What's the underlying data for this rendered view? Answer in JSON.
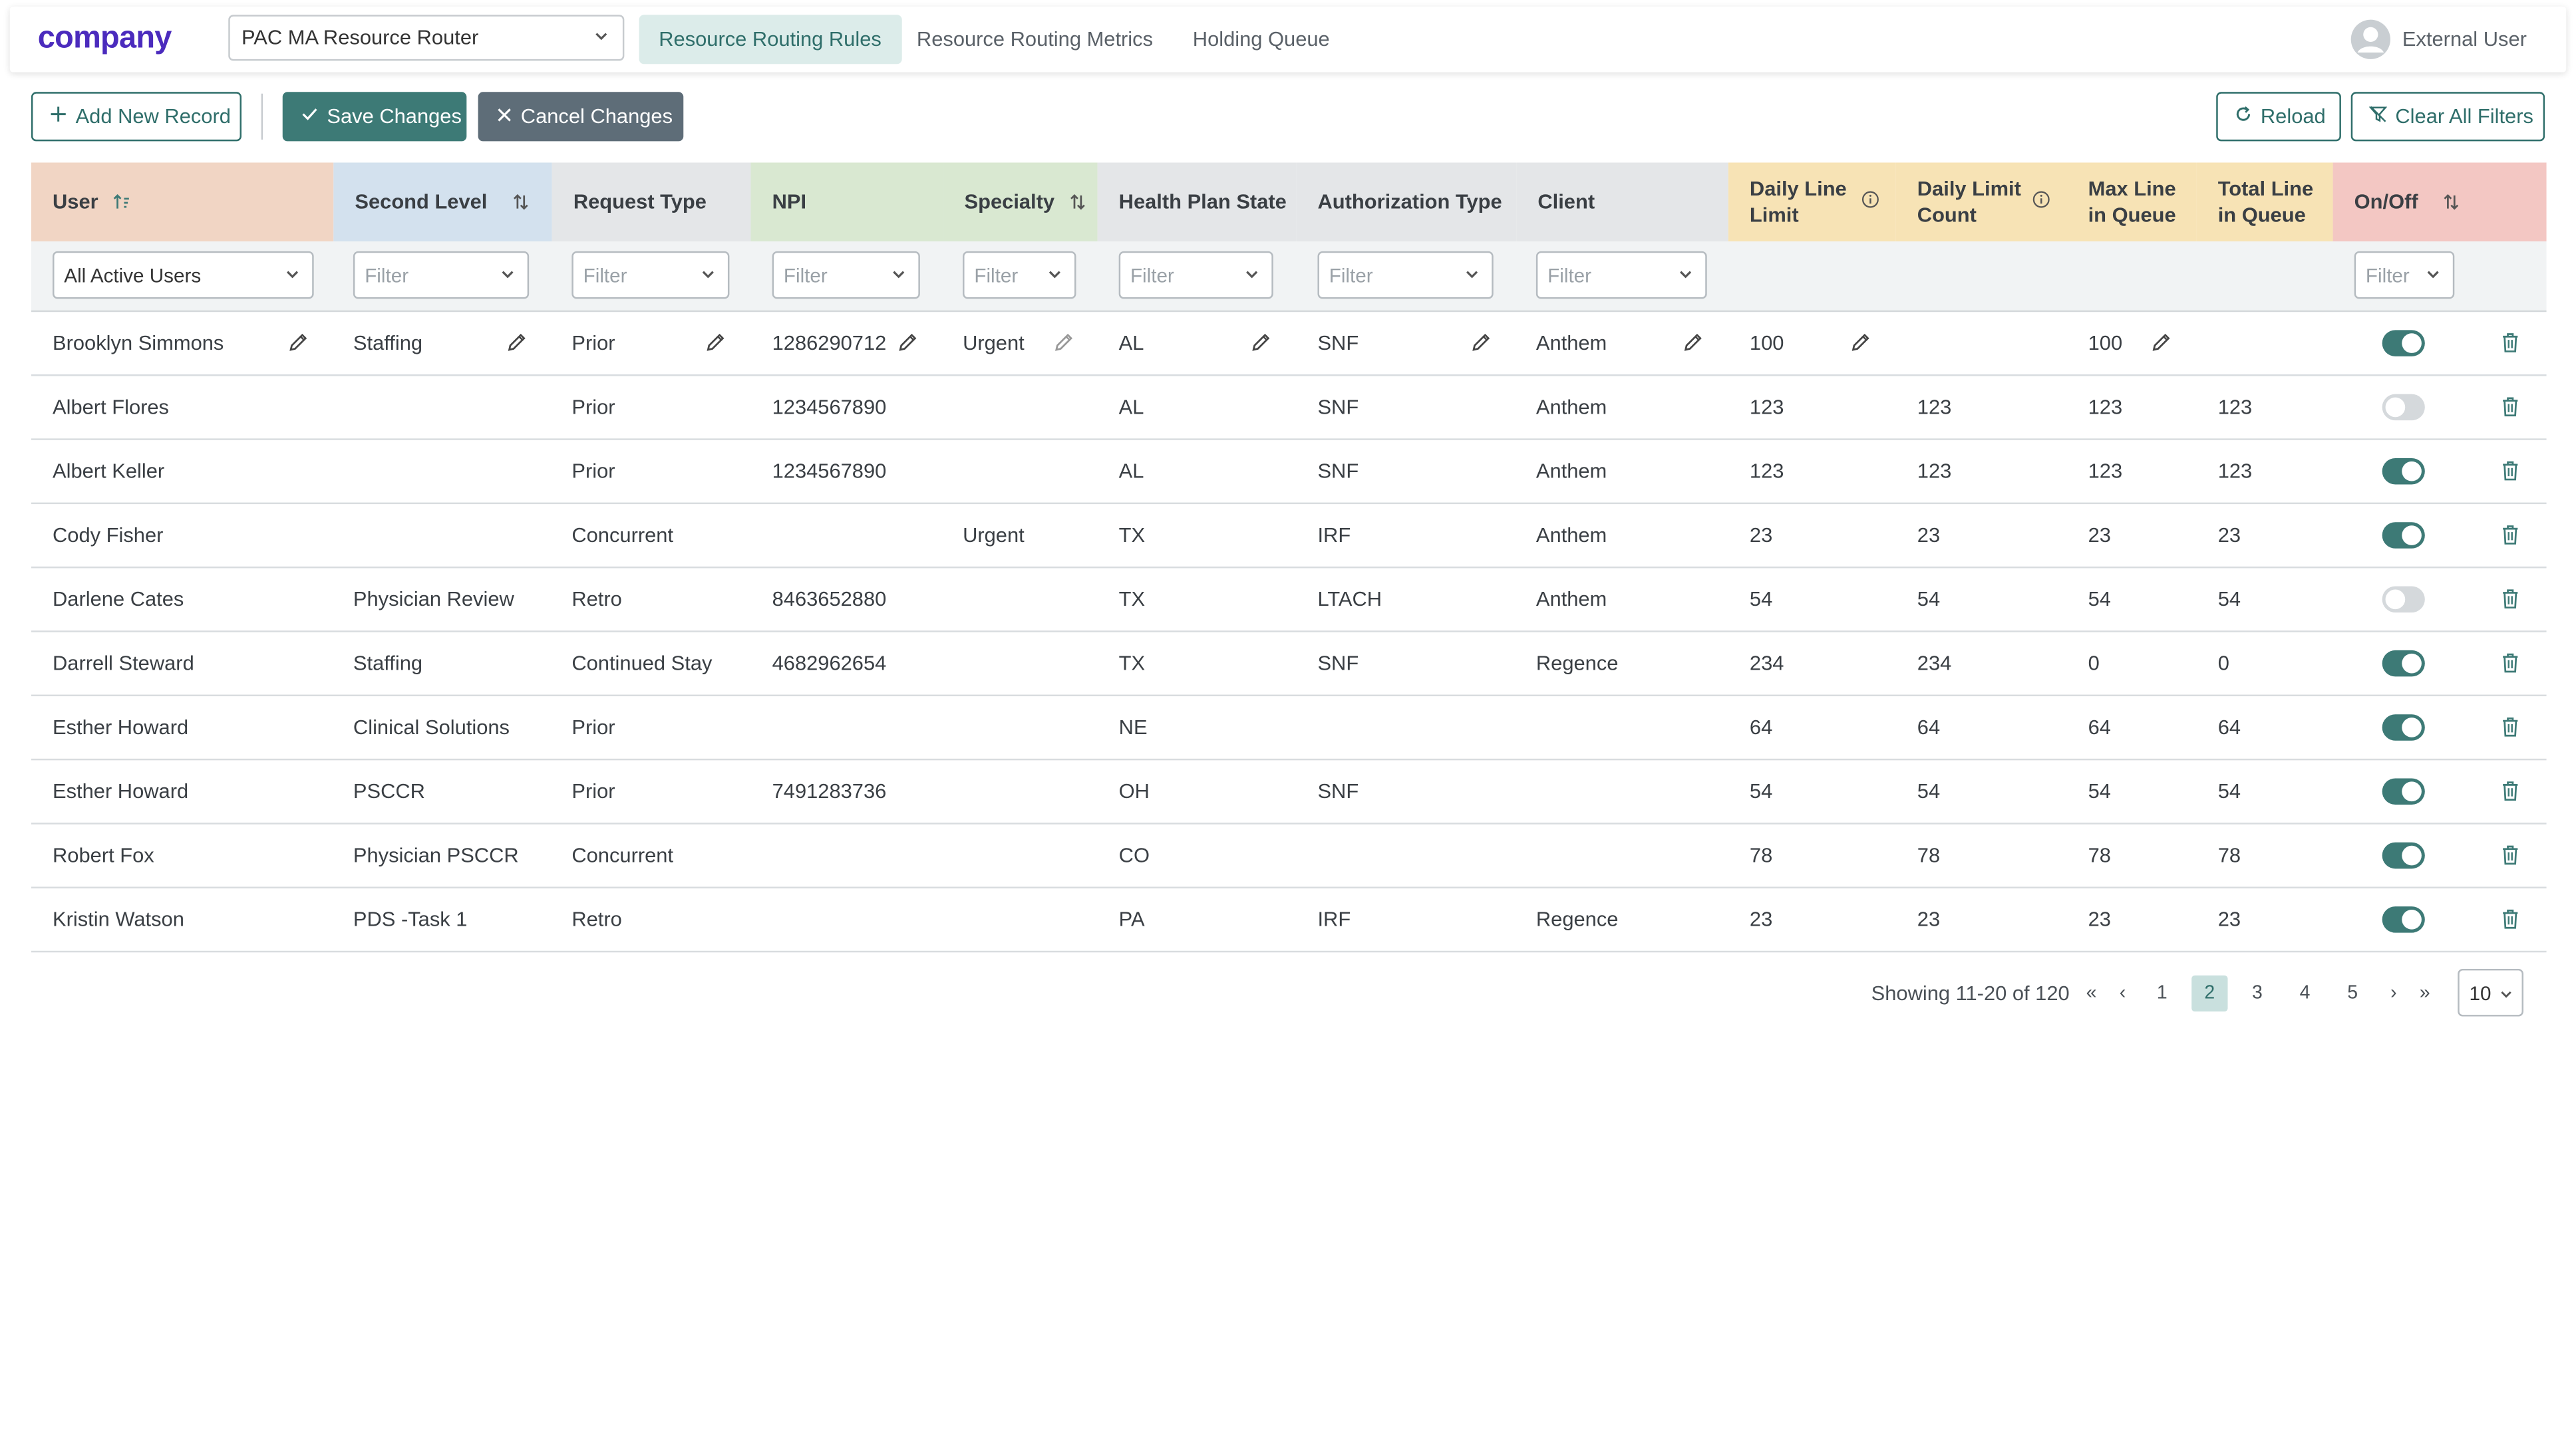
{
  "app": {
    "logo": "company",
    "router_select": "PAC MA Resource Router",
    "tabs": [
      {
        "label": "Resource Routing Rules",
        "active": true
      },
      {
        "label": "Resource Routing Metrics",
        "active": false
      },
      {
        "label": "Holding Queue",
        "active": false
      }
    ],
    "user": "External User"
  },
  "toolbar": {
    "add_new": "Add New Record",
    "save": "Save Changes",
    "cancel": "Cancel Changes",
    "reload": "Reload",
    "clear_filters": "Clear All Filters"
  },
  "colors": {
    "accent": "#3d7a76",
    "header_user": "#f1d5c4",
    "header_second_level": "#d3e1ee",
    "header_npi_specialty": "#d9e8d1",
    "header_neutral": "#e4e6e8",
    "header_limits": "#f7e3b5",
    "header_onoff": "#f3c7c3"
  },
  "table": {
    "columns": [
      "User",
      "Second Level",
      "Request Type",
      "NPI",
      "Specialty",
      "Health Plan State",
      "Authorization Type",
      "Client",
      "Daily Line Limit",
      "Daily Limit Count",
      "Max Line in Queue",
      "Total Line in Queue",
      "On/Off"
    ],
    "header_lines": {
      "daily_line_limit": [
        "Daily Line",
        "Limit"
      ],
      "daily_limit_count": [
        "Daily Limit",
        "Count"
      ],
      "max_line": [
        "Max Line",
        "in Queue"
      ],
      "total_line": [
        "Total Line",
        "in Queue"
      ]
    },
    "filters": {
      "user": "All Active Users",
      "placeholder": "Filter"
    },
    "rows": [
      {
        "user": "Brooklyn Simmons",
        "second": "Staffing",
        "request": "Prior",
        "npi": "1286290712",
        "specialty": "Urgent",
        "state": "AL",
        "auth": "SNF",
        "client": "Anthem",
        "daily_limit": "100",
        "daily_count": "",
        "max_line": "100",
        "total_line": "",
        "on": true,
        "editing": true
      },
      {
        "user": "Albert Flores",
        "second": "",
        "request": "Prior",
        "npi": "1234567890",
        "specialty": "",
        "state": "AL",
        "auth": "SNF",
        "client": "Anthem",
        "daily_limit": "123",
        "daily_count": "123",
        "max_line": "123",
        "total_line": "123",
        "on": false
      },
      {
        "user": "Albert Keller",
        "second": "",
        "request": "Prior",
        "npi": "1234567890",
        "specialty": "",
        "state": "AL",
        "auth": "SNF",
        "client": "Anthem",
        "daily_limit": "123",
        "daily_count": "123",
        "max_line": "123",
        "total_line": "123",
        "on": true
      },
      {
        "user": "Cody Fisher",
        "second": "",
        "request": "Concurrent",
        "npi": "",
        "specialty": "Urgent",
        "state": "TX",
        "auth": "IRF",
        "client": "Anthem",
        "daily_limit": "23",
        "daily_count": "23",
        "max_line": "23",
        "total_line": "23",
        "on": true
      },
      {
        "user": "Darlene Cates",
        "second": "Physician Review",
        "request": "Retro",
        "npi": "8463652880",
        "specialty": "",
        "state": "TX",
        "auth": "LTACH",
        "client": "Anthem",
        "daily_limit": "54",
        "daily_count": "54",
        "max_line": "54",
        "total_line": "54",
        "on": false
      },
      {
        "user": "Darrell Steward",
        "second": "Staffing",
        "request": "Continued Stay",
        "npi": "4682962654",
        "specialty": "",
        "state": "TX",
        "auth": "SNF",
        "client": "Regence",
        "daily_limit": "234",
        "daily_count": "234",
        "max_line": "0",
        "total_line": "0",
        "on": true
      },
      {
        "user": "Esther Howard",
        "second": "Clinical Solutions",
        "request": "Prior",
        "npi": "",
        "specialty": "",
        "state": "NE",
        "auth": "",
        "client": "",
        "daily_limit": "64",
        "daily_count": "64",
        "max_line": "64",
        "total_line": "64",
        "on": true
      },
      {
        "user": "Esther Howard",
        "second": "PSCCR",
        "request": "Prior",
        "npi": "7491283736",
        "specialty": "",
        "state": "OH",
        "auth": "SNF",
        "client": "",
        "daily_limit": "54",
        "daily_count": "54",
        "max_line": "54",
        "total_line": "54",
        "on": true
      },
      {
        "user": "Robert Fox",
        "second": "Physician PSCCR",
        "request": "Concurrent",
        "npi": "",
        "specialty": "",
        "state": "CO",
        "auth": "",
        "client": "",
        "daily_limit": "78",
        "daily_count": "78",
        "max_line": "78",
        "total_line": "78",
        "on": true
      },
      {
        "user": "Kristin Watson",
        "second": "PDS -Task 1",
        "request": "Retro",
        "npi": "",
        "specialty": "",
        "state": "PA",
        "auth": "IRF",
        "client": "Regence",
        "daily_limit": "23",
        "daily_count": "23",
        "max_line": "23",
        "total_line": "23",
        "on": true
      }
    ]
  },
  "pagination": {
    "showing": "Showing 11-20 of 120",
    "first": "«",
    "prev": "‹",
    "pages": [
      "1",
      "2",
      "3",
      "4",
      "5"
    ],
    "current": "2",
    "next": "›",
    "last": "»",
    "per_page": "10"
  }
}
